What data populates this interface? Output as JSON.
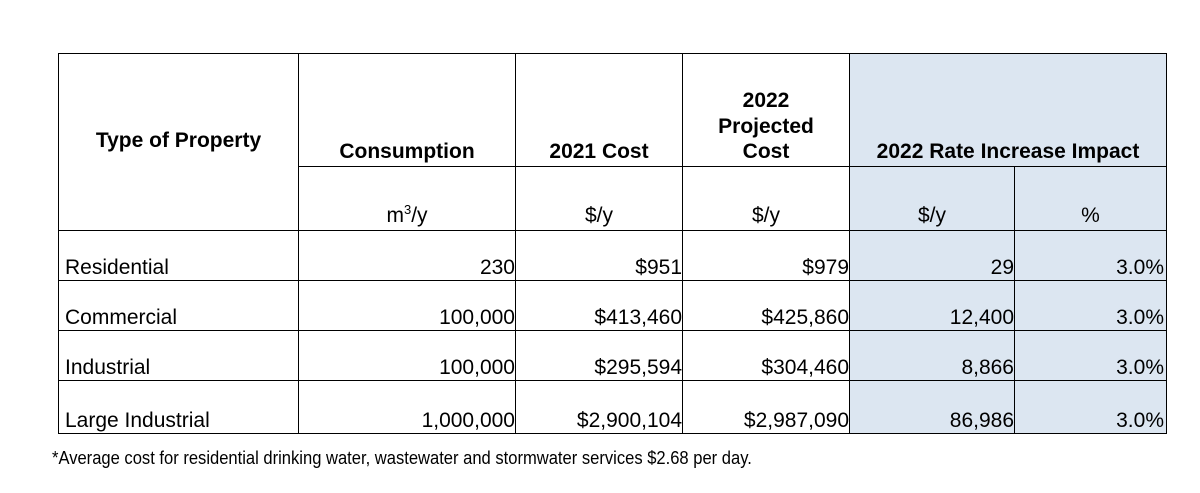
{
  "table": {
    "headers": {
      "type": "Type of Property",
      "consumption": "Consumption",
      "cost2021": "2021 Cost",
      "cost2022_line1": "2022",
      "cost2022_line2": "Projected",
      "cost2022_line3": "Cost",
      "impact": "2022 Rate Increase Impact"
    },
    "units": {
      "consumption_base": "m",
      "consumption_sup": "3",
      "consumption_tail": "/y",
      "cost2021": "$/y",
      "cost2022": "$/y",
      "impact_dollars": "$/y",
      "impact_pct": "%"
    },
    "rows": [
      {
        "type": "Residential",
        "consumption": "230",
        "cost2021": "$951",
        "cost2022": "$979",
        "impact_dollars": "29",
        "impact_pct": "3.0%"
      },
      {
        "type": "Commercial",
        "consumption": "100,000",
        "cost2021": "$413,460",
        "cost2022": "$425,860",
        "impact_dollars": "12,400",
        "impact_pct": "3.0%"
      },
      {
        "type": "Industrial",
        "consumption": "100,000",
        "cost2021": "$295,594",
        "cost2022": "$304,460",
        "impact_dollars": "8,866",
        "impact_pct": "3.0%"
      },
      {
        "type": "Large Industrial",
        "consumption": "1,000,000",
        "cost2021": "$2,900,104",
        "cost2022": "$2,987,090",
        "impact_dollars": "86,986",
        "impact_pct": "3.0%"
      }
    ],
    "shade_color": "#dce6f1"
  },
  "footnote": "*Average cost for residential drinking water, wastewater and stormwater services $2.68 per day."
}
